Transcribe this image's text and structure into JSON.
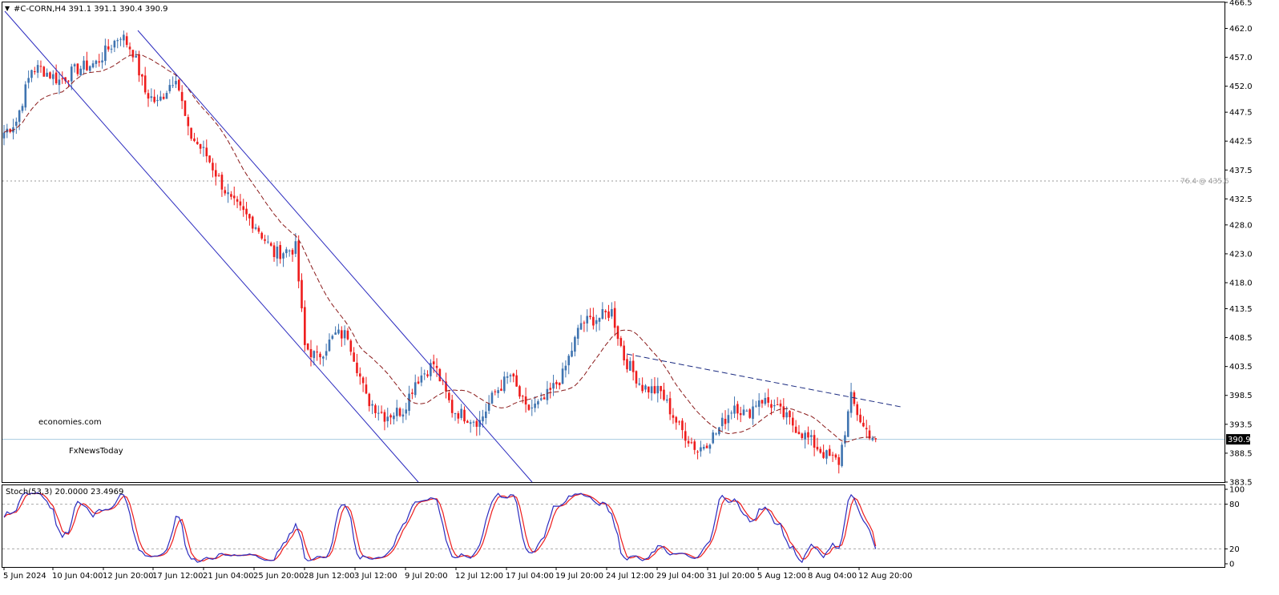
{
  "header": {
    "menu_arrow": "▼",
    "title": "#C-CORN,H4  391.1 391.1 390.4 390.9"
  },
  "watermark": {
    "line1": "economies.com",
    "line2": "FxNewsToday"
  },
  "fib_label": "76.4 @ 435.6",
  "current_price": "390.9",
  "stoch_label": "Stoch(53,3) 20.0000 23.4969",
  "colors": {
    "bull": "#3f74b0",
    "bear": "#ee1c1c",
    "ma": "#8b1a1a",
    "channel": "#2b2bbf",
    "trend": "#1a2a80",
    "stoch_main": "#2b2bbf",
    "stoch_signal": "#ee1c1c",
    "price_line": "#a8cce0"
  },
  "chart_data": [
    {
      "type": "candlestick",
      "symbol": "#C-CORN",
      "timeframe": "H4",
      "ohlc_last": {
        "open": 391.1,
        "high": 391.1,
        "low": 390.4,
        "close": 390.9
      },
      "y_ticks": [
        466.5,
        462.0,
        457.0,
        452.0,
        447.5,
        442.5,
        437.5,
        432.5,
        428.0,
        423.0,
        418.0,
        413.5,
        408.5,
        403.5,
        398.5,
        393.5,
        388.5,
        383.5
      ],
      "ylim": [
        383.5,
        466.5
      ],
      "x_ticks": [
        "5 Jun 2024",
        "10 Jun 04:00",
        "12 Jun 20:00",
        "17 Jun 12:00",
        "21 Jun 04:00",
        "25 Jun 20:00",
        "28 Jun 12:00",
        "3 Jul 12:00",
        "9 Jul 20:00",
        "12 Jul 12:00",
        "17 Jul 04:00",
        "19 Jul 20:00",
        "24 Jul 12:00",
        "29 Jul 04:00",
        "31 Jul 20:00",
        "5 Aug 12:00",
        "8 Aug 04:00",
        "12 Aug 20:00"
      ],
      "anchors": [
        {
          "bar": 0,
          "close": 444
        },
        {
          "bar": 4,
          "close": 446
        },
        {
          "bar": 9,
          "close": 455
        },
        {
          "bar": 12,
          "close": 455
        },
        {
          "bar": 18,
          "close": 453
        },
        {
          "bar": 24,
          "close": 455
        },
        {
          "bar": 30,
          "close": 456
        },
        {
          "bar": 38,
          "close": 461
        },
        {
          "bar": 42,
          "close": 458
        },
        {
          "bar": 46,
          "close": 451
        },
        {
          "bar": 50,
          "close": 449
        },
        {
          "bar": 56,
          "close": 454
        },
        {
          "bar": 60,
          "close": 444
        },
        {
          "bar": 66,
          "close": 440
        },
        {
          "bar": 74,
          "close": 432
        },
        {
          "bar": 82,
          "close": 428
        },
        {
          "bar": 88,
          "close": 423
        },
        {
          "bar": 95,
          "close": 424
        },
        {
          "bar": 98,
          "close": 407
        },
        {
          "bar": 102,
          "close": 405
        },
        {
          "bar": 108,
          "close": 409
        },
        {
          "bar": 112,
          "close": 409
        },
        {
          "bar": 118,
          "close": 398
        },
        {
          "bar": 124,
          "close": 395
        },
        {
          "bar": 130,
          "close": 396
        },
        {
          "bar": 134,
          "close": 401
        },
        {
          "bar": 140,
          "close": 404
        },
        {
          "bar": 146,
          "close": 396
        },
        {
          "bar": 150,
          "close": 395
        },
        {
          "bar": 155,
          "close": 394
        },
        {
          "bar": 160,
          "close": 399
        },
        {
          "bar": 165,
          "close": 402
        },
        {
          "bar": 170,
          "close": 396
        },
        {
          "bar": 175,
          "close": 397
        },
        {
          "bar": 182,
          "close": 402
        },
        {
          "bar": 188,
          "close": 411
        },
        {
          "bar": 194,
          "close": 412
        },
        {
          "bar": 198,
          "close": 413
        },
        {
          "bar": 202,
          "close": 405
        },
        {
          "bar": 208,
          "close": 400
        },
        {
          "bar": 214,
          "close": 399
        },
        {
          "bar": 220,
          "close": 393
        },
        {
          "bar": 226,
          "close": 389
        },
        {
          "bar": 232,
          "close": 392
        },
        {
          "bar": 238,
          "close": 397
        },
        {
          "bar": 242,
          "close": 395
        },
        {
          "bar": 246,
          "close": 398
        },
        {
          "bar": 250,
          "close": 397
        },
        {
          "bar": 256,
          "close": 394
        },
        {
          "bar": 262,
          "close": 391
        },
        {
          "bar": 268,
          "close": 388
        },
        {
          "bar": 272,
          "close": 387
        },
        {
          "bar": 276,
          "close": 398
        },
        {
          "bar": 280,
          "close": 393
        },
        {
          "bar": 284,
          "close": 390.9
        }
      ],
      "ma_type": "dashed moving average"
    },
    {
      "type": "line",
      "indicator": "Stochastic",
      "params": "Stoch(53,3)",
      "levels": [
        80,
        20
      ],
      "y_ticks": [
        100,
        80,
        20,
        0
      ],
      "ylim": [
        0,
        100
      ],
      "main_last": 20.0,
      "signal_last": 23.4969
    }
  ]
}
